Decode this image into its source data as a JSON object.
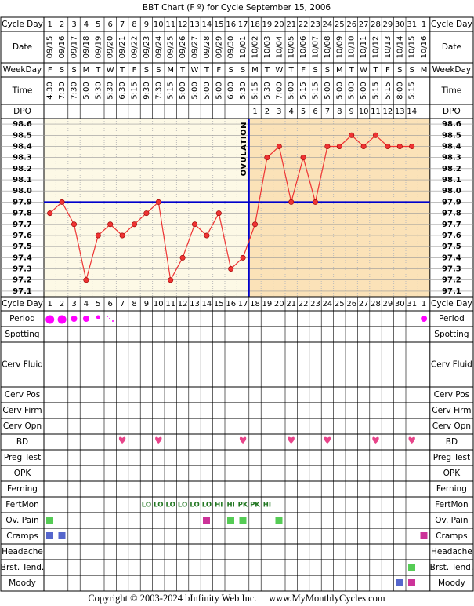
{
  "chart_data": {
    "type": "line",
    "title": "BBT Chart (F º) for Cycle September 15, 2006",
    "top_rows": [
      "Cycle Day",
      "Date",
      "WeekDay",
      "Time",
      "DPO"
    ],
    "bottom_rows": [
      "Cycle Day",
      "Period",
      "Spotting",
      "Cerv Fluid",
      "Cerv Pos",
      "Cerv Firm",
      "Cerv Opn",
      "BD",
      "Preg Test",
      "OPK",
      "Ferning",
      "FertMon",
      "Ov. Pain",
      "Cramps",
      "Headache",
      "Brst. Tend.",
      "Moody"
    ],
    "cycle_days": [
      1,
      2,
      3,
      4,
      5,
      6,
      7,
      8,
      9,
      10,
      11,
      12,
      13,
      14,
      15,
      16,
      17,
      18,
      19,
      20,
      21,
      22,
      23,
      24,
      25,
      26,
      27,
      28,
      29,
      30,
      31,
      1
    ],
    "dates": [
      "09/15",
      "09/16",
      "09/17",
      "09/18",
      "09/19",
      "09/20",
      "09/21",
      "09/22",
      "09/23",
      "09/24",
      "09/25",
      "09/26",
      "09/27",
      "09/28",
      "09/29",
      "09/30",
      "10/01",
      "10/02",
      "10/03",
      "10/04",
      "10/05",
      "10/06",
      "10/07",
      "10/08",
      "10/09",
      "10/10",
      "10/11",
      "10/12",
      "10/13",
      "10/14",
      "10/15",
      "10/16"
    ],
    "weekdays": [
      "F",
      "S",
      "S",
      "M",
      "T",
      "W",
      "T",
      "F",
      "S",
      "S",
      "M",
      "T",
      "W",
      "T",
      "F",
      "S",
      "S",
      "M",
      "T",
      "W",
      "T",
      "F",
      "S",
      "S",
      "M",
      "T",
      "W",
      "T",
      "F",
      "S",
      "S",
      "M"
    ],
    "times": [
      "4:30",
      "7:30",
      "7:30",
      "5:00",
      "5:30",
      "5:30",
      "6:30",
      "5:15",
      "9:30",
      "7:30",
      "5:15",
      "5:00",
      "5:00",
      "5:00",
      "5:00",
      "6:00",
      "5:30",
      "5:15",
      "5:30",
      "7:00",
      "5:00",
      "5:15",
      "5:15",
      "5:00",
      "5:00",
      "5:00",
      "5:00",
      "5:15",
      "5:15",
      "8:00",
      "5:15",
      null
    ],
    "dpo": [
      null,
      null,
      null,
      null,
      null,
      null,
      null,
      null,
      null,
      null,
      null,
      null,
      null,
      null,
      null,
      null,
      null,
      1,
      2,
      3,
      4,
      5,
      6,
      7,
      8,
      9,
      10,
      11,
      12,
      13,
      14,
      null
    ],
    "series": [
      {
        "color": "#ee3333",
        "values": [
          97.8,
          97.9,
          97.7,
          97.2,
          97.6,
          97.7,
          97.6,
          97.7,
          97.8,
          97.9,
          97.2,
          97.4,
          97.7,
          97.6,
          97.8,
          97.3,
          97.4,
          97.7,
          98.3,
          98.4,
          97.9,
          98.3,
          97.9,
          98.4,
          98.4,
          98.5,
          98.4,
          98.5,
          98.4,
          98.4,
          98.4,
          null
        ]
      }
    ],
    "ylim": [
      97.05,
      98.65
    ],
    "yticks": [
      97.1,
      97.2,
      97.3,
      97.4,
      97.5,
      97.6,
      97.7,
      97.8,
      97.9,
      {
        "value": 98,
        "label": "98.0"
      },
      98.1,
      98.2,
      98.3,
      98.4,
      98.5,
      98.6
    ],
    "coverline": 97.9,
    "coverline_color": "#0000cc",
    "ovulation_day": 17,
    "ovulation_label": "OVULATION",
    "fertmon": [
      null,
      null,
      null,
      null,
      null,
      null,
      null,
      null,
      "LO",
      "LO",
      "LO",
      "LO",
      "LO",
      "LO",
      "HI",
      "HI",
      "PK",
      "PK",
      "HI",
      null,
      null,
      null,
      null,
      null,
      null,
      null,
      null,
      null,
      null,
      null,
      null,
      null
    ]
  },
  "footer": {
    "copyright": "Copyright © 2003-2024 bInfinity Web Inc.     www.MyMonthlyCycles.com"
  }
}
